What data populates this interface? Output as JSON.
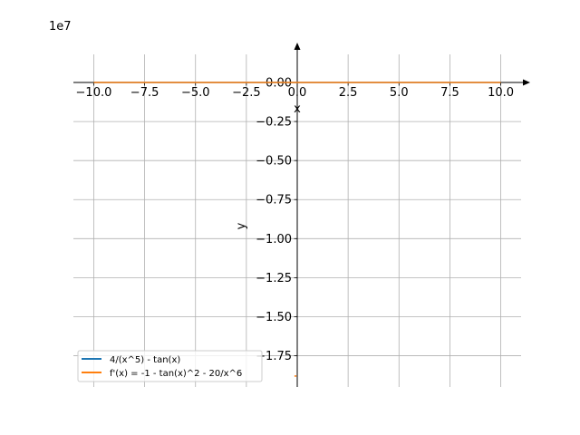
{
  "chart_data": {
    "type": "line",
    "title": "",
    "xlabel": "x",
    "ylabel": "y",
    "offset_label": "1e7",
    "xlim": [
      -11,
      11
    ],
    "ylim": [
      -1.95,
      0.18
    ],
    "grid": true,
    "legend_position": "lower-left",
    "x_ticks": [
      -10,
      -7.5,
      -5,
      -2.5,
      0,
      2.5,
      5,
      7.5,
      10
    ],
    "x_tick_labels": [
      "−10.0",
      "−7.5",
      "−5.0",
      "−2.5",
      "0.0",
      "2.5",
      "5.0",
      "7.5",
      "10.0"
    ],
    "y_ticks": [
      0,
      -0.25,
      -0.5,
      -0.75,
      -1.0,
      -1.25,
      -1.5,
      -1.75
    ],
    "y_tick_labels": [
      "0.00",
      "−0.25",
      "−0.50",
      "−0.75",
      "−1.00",
      "−1.25",
      "−1.50",
      "−1.75"
    ],
    "series": [
      {
        "name": "4/(x^5) - tan(x)",
        "color": "#1f77b4",
        "x": [
          -10,
          -5,
          -2.5,
          0.5,
          2.5,
          5,
          10
        ],
        "y": [
          0,
          0,
          0,
          0,
          0,
          0,
          0
        ]
      },
      {
        "name": "f'(x) = -1 - tan(x)^2 - 20/x^6",
        "color": "#ff7f0e",
        "x": [
          -10,
          -5,
          -2.5,
          0.5,
          2.5,
          5,
          10
        ],
        "y": [
          0,
          0,
          0,
          0,
          0,
          0,
          0
        ],
        "spike_x": [
          -0.05,
          0.05
        ],
        "spike_y": [
          -1.88,
          -1.88
        ]
      }
    ]
  }
}
